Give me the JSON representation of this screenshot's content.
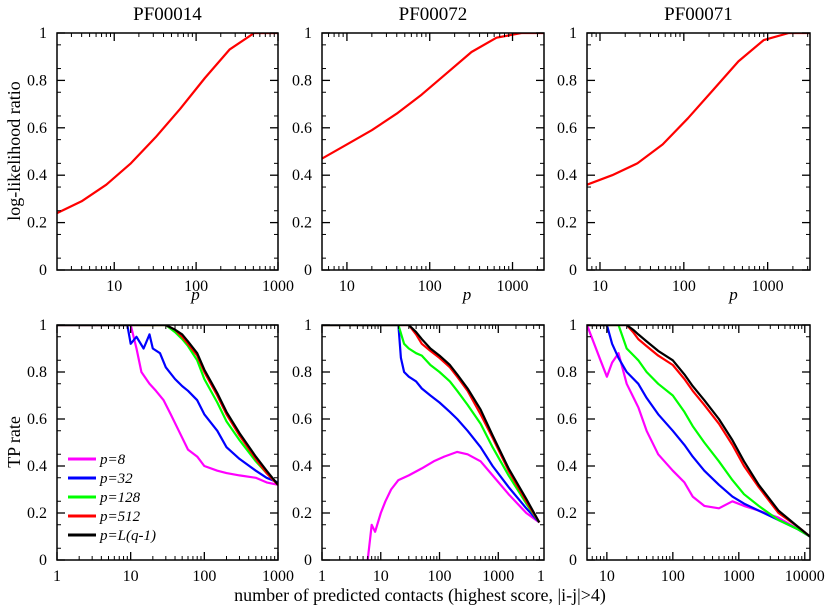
{
  "figure": {
    "ylabel_top": "log-likelihood ratio",
    "ylabel_bottom": "TP rate",
    "xlabel_bottom": "number of predicted contacts (highest score, |i-j|>4)",
    "top_xlabel": "p"
  },
  "legend": [
    {
      "label": "p=8",
      "color": "#ff00ff"
    },
    {
      "label": "p=32",
      "color": "#0000ff"
    },
    {
      "label": "p=128",
      "color": "#00ff00"
    },
    {
      "label": "p=512",
      "color": "#ff0000"
    },
    {
      "label": "p=L(q-1)",
      "color": "#000000"
    }
  ],
  "chart_data": [
    {
      "type": "line",
      "title": "PF00014",
      "xlabel": "p",
      "ylabel": "log-likelihood ratio",
      "xscale": "log",
      "xlim": [
        2,
        1000
      ],
      "ylim": [
        0,
        1
      ],
      "xticks": [
        "10",
        "100",
        "1000"
      ],
      "yticks": [
        "0",
        "0.2",
        "0.4",
        "0.6",
        "0.8",
        "1"
      ],
      "series": [
        {
          "name": "log-likelihood ratio",
          "color": "#ff0000",
          "x": [
            2,
            4,
            8,
            16,
            32,
            64,
            128,
            256,
            512,
            1000
          ],
          "y": [
            0.24,
            0.29,
            0.36,
            0.45,
            0.56,
            0.68,
            0.81,
            0.93,
            1.0,
            1.0
          ]
        }
      ]
    },
    {
      "type": "line",
      "title": "PF00072",
      "xlabel": "p",
      "ylabel": "",
      "xscale": "log",
      "xlim": [
        5,
        2400
      ],
      "ylim": [
        0,
        1
      ],
      "xticks": [
        "10",
        "100",
        "1000"
      ],
      "yticks": [
        "0",
        "0.2",
        "0.4",
        "0.6",
        "0.8",
        "1"
      ],
      "series": [
        {
          "name": "log-likelihood ratio",
          "color": "#ff0000",
          "x": [
            5,
            10,
            20,
            40,
            80,
            160,
            320,
            640,
            1280,
            2400
          ],
          "y": [
            0.47,
            0.53,
            0.59,
            0.66,
            0.74,
            0.83,
            0.92,
            0.98,
            1.0,
            1.0
          ]
        }
      ]
    },
    {
      "type": "line",
      "title": "PF00071",
      "xlabel": "p",
      "ylabel": "",
      "xscale": "log",
      "xlim": [
        7,
        3200
      ],
      "ylim": [
        0,
        1
      ],
      "xticks": [
        "10",
        "100",
        "1000"
      ],
      "yticks": [
        "0",
        "0.2",
        "0.4",
        "0.6",
        "0.8",
        "1"
      ],
      "series": [
        {
          "name": "log-likelihood ratio",
          "color": "#ff0000",
          "x": [
            7,
            14,
            28,
            56,
            112,
            224,
            448,
            896,
            1792,
            3200
          ],
          "y": [
            0.36,
            0.4,
            0.45,
            0.53,
            0.64,
            0.76,
            0.88,
            0.97,
            1.0,
            1.0
          ]
        }
      ]
    },
    {
      "type": "line",
      "title": "",
      "xlabel": "",
      "ylabel": "TP rate",
      "xscale": "log",
      "xlim": [
        1,
        1000
      ],
      "ylim": [
        0,
        1
      ],
      "xticks": [
        "1",
        "10",
        "100",
        "1000"
      ],
      "yticks": [
        "0",
        "0.2",
        "0.4",
        "0.6",
        "0.8",
        "1"
      ],
      "series": [
        {
          "name": "p=8",
          "color": "#ff00ff",
          "x": [
            1,
            10,
            12,
            14,
            18,
            22,
            28,
            35,
            45,
            60,
            80,
            100,
            150,
            200,
            300,
            500,
            700,
            1000
          ],
          "y": [
            1,
            1,
            0.9,
            0.8,
            0.75,
            0.72,
            0.68,
            0.62,
            0.55,
            0.47,
            0.44,
            0.4,
            0.38,
            0.37,
            0.36,
            0.35,
            0.33,
            0.32
          ]
        },
        {
          "name": "p=32",
          "color": "#0000ff",
          "x": [
            1,
            9,
            10,
            12,
            15,
            18,
            20,
            25,
            30,
            40,
            50,
            60,
            80,
            100,
            150,
            200,
            300,
            500,
            700,
            1000
          ],
          "y": [
            1,
            1,
            0.92,
            0.95,
            0.9,
            0.96,
            0.9,
            0.88,
            0.82,
            0.77,
            0.74,
            0.72,
            0.68,
            0.62,
            0.55,
            0.48,
            0.43,
            0.38,
            0.35,
            0.33
          ]
        },
        {
          "name": "p=128",
          "color": "#00ff00",
          "x": [
            1,
            30,
            40,
            50,
            60,
            80,
            100,
            150,
            200,
            300,
            500,
            700,
            1000
          ],
          "y": [
            1,
            1,
            0.97,
            0.94,
            0.91,
            0.85,
            0.77,
            0.67,
            0.59,
            0.51,
            0.42,
            0.37,
            0.32
          ]
        },
        {
          "name": "p=512",
          "color": "#ff0000",
          "x": [
            1,
            30,
            40,
            50,
            60,
            80,
            100,
            150,
            200,
            300,
            500,
            700,
            1000
          ],
          "y": [
            1,
            1,
            0.98,
            0.95,
            0.92,
            0.87,
            0.8,
            0.7,
            0.62,
            0.53,
            0.43,
            0.37,
            0.32
          ]
        },
        {
          "name": "p=L(q-1)",
          "color": "#000000",
          "x": [
            1,
            30,
            40,
            50,
            60,
            80,
            100,
            150,
            200,
            300,
            500,
            700,
            1000
          ],
          "y": [
            1,
            1,
            0.98,
            0.96,
            0.93,
            0.88,
            0.81,
            0.71,
            0.63,
            0.54,
            0.44,
            0.38,
            0.32
          ]
        }
      ]
    },
    {
      "type": "line",
      "title": "",
      "xlabel": "",
      "ylabel": "",
      "xscale": "log",
      "xlim": [
        1,
        6000
      ],
      "ylim": [
        0,
        1
      ],
      "xticks": [
        "1",
        "10",
        "100",
        "1000"
      ],
      "yticks": [
        "0",
        "0.2",
        "0.4",
        "0.6",
        "0.8",
        "1"
      ],
      "series": [
        {
          "name": "p=8",
          "color": "#ff00ff",
          "x": [
            6,
            7,
            8,
            10,
            12,
            15,
            20,
            30,
            50,
            80,
            120,
            200,
            300,
            500,
            800,
            1500,
            3000,
            5000
          ],
          "y": [
            0,
            0.15,
            0.12,
            0.2,
            0.25,
            0.3,
            0.34,
            0.36,
            0.39,
            0.42,
            0.44,
            0.46,
            0.45,
            0.42,
            0.36,
            0.28,
            0.2,
            0.16
          ]
        },
        {
          "name": "p=32",
          "color": "#0000ff",
          "x": [
            1,
            20,
            22,
            25,
            30,
            40,
            50,
            70,
            100,
            150,
            200,
            300,
            500,
            800,
            1500,
            3000,
            5000
          ],
          "y": [
            1,
            1,
            0.86,
            0.8,
            0.78,
            0.76,
            0.73,
            0.7,
            0.67,
            0.63,
            0.6,
            0.55,
            0.48,
            0.4,
            0.31,
            0.22,
            0.16
          ]
        },
        {
          "name": "p=128",
          "color": "#00ff00",
          "x": [
            1,
            20,
            25,
            30,
            40,
            50,
            70,
            100,
            150,
            200,
            300,
            500,
            800,
            1500,
            3000,
            5000
          ],
          "y": [
            1,
            1,
            0.92,
            0.9,
            0.88,
            0.87,
            0.83,
            0.8,
            0.76,
            0.72,
            0.66,
            0.58,
            0.48,
            0.36,
            0.24,
            0.16
          ]
        },
        {
          "name": "p=512",
          "color": "#ff0000",
          "x": [
            1,
            30,
            40,
            50,
            70,
            100,
            150,
            200,
            300,
            500,
            800,
            1500,
            3000,
            5000
          ],
          "y": [
            1,
            1,
            0.96,
            0.92,
            0.89,
            0.86,
            0.82,
            0.78,
            0.72,
            0.62,
            0.52,
            0.38,
            0.25,
            0.16
          ]
        },
        {
          "name": "p=L(q-1)",
          "color": "#000000",
          "x": [
            1,
            30,
            40,
            50,
            70,
            100,
            150,
            200,
            300,
            500,
            800,
            1500,
            3000,
            5000
          ],
          "y": [
            1,
            1,
            0.97,
            0.94,
            0.9,
            0.87,
            0.83,
            0.79,
            0.73,
            0.64,
            0.53,
            0.39,
            0.26,
            0.16
          ]
        }
      ]
    },
    {
      "type": "line",
      "title": "",
      "xlabel": "",
      "ylabel": "",
      "xscale": "log",
      "xlim": [
        5,
        12000
      ],
      "ylim": [
        0,
        1
      ],
      "xticks": [
        "1",
        "10",
        "100",
        "1000",
        "10000"
      ],
      "yticks": [
        "0",
        "0.2",
        "0.4",
        "0.6",
        "0.8",
        "1"
      ],
      "series": [
        {
          "name": "p=8",
          "color": "#ff00ff",
          "x": [
            5,
            8,
            10,
            12,
            15,
            20,
            30,
            40,
            60,
            100,
            150,
            200,
            300,
            500,
            800,
            1200,
            2000,
            4000,
            8000,
            12000
          ],
          "y": [
            1,
            0.85,
            0.78,
            0.84,
            0.88,
            0.75,
            0.65,
            0.55,
            0.45,
            0.38,
            0.33,
            0.27,
            0.23,
            0.22,
            0.25,
            0.23,
            0.21,
            0.18,
            0.13,
            0.1
          ]
        },
        {
          "name": "p=32",
          "color": "#0000ff",
          "x": [
            5,
            10,
            12,
            15,
            20,
            30,
            40,
            60,
            100,
            150,
            200,
            300,
            500,
            800,
            1200,
            2000,
            4000,
            8000,
            12000
          ],
          "y": [
            1,
            1,
            0.92,
            0.86,
            0.8,
            0.75,
            0.69,
            0.62,
            0.55,
            0.49,
            0.44,
            0.38,
            0.32,
            0.27,
            0.24,
            0.21,
            0.17,
            0.13,
            0.1
          ]
        },
        {
          "name": "p=128",
          "color": "#00ff00",
          "x": [
            5,
            15,
            20,
            30,
            40,
            60,
            100,
            150,
            200,
            300,
            500,
            800,
            1200,
            2000,
            4000,
            8000,
            12000
          ],
          "y": [
            1,
            1,
            0.9,
            0.85,
            0.8,
            0.75,
            0.7,
            0.63,
            0.57,
            0.5,
            0.42,
            0.34,
            0.28,
            0.23,
            0.17,
            0.13,
            0.1
          ]
        },
        {
          "name": "p=512",
          "color": "#ff0000",
          "x": [
            5,
            20,
            25,
            30,
            40,
            60,
            100,
            150,
            200,
            300,
            500,
            800,
            1200,
            2000,
            4000,
            8000,
            12000
          ],
          "y": [
            1,
            1,
            0.97,
            0.94,
            0.91,
            0.87,
            0.83,
            0.77,
            0.72,
            0.66,
            0.58,
            0.49,
            0.4,
            0.31,
            0.2,
            0.14,
            0.1
          ]
        },
        {
          "name": "p=L(q-1)",
          "color": "#000000",
          "x": [
            5,
            20,
            25,
            30,
            40,
            60,
            100,
            150,
            200,
            300,
            500,
            800,
            1200,
            2000,
            4000,
            8000,
            12000
          ],
          "y": [
            1,
            1,
            0.98,
            0.96,
            0.93,
            0.89,
            0.85,
            0.79,
            0.74,
            0.68,
            0.6,
            0.51,
            0.42,
            0.32,
            0.21,
            0.14,
            0.1
          ]
        }
      ]
    }
  ]
}
